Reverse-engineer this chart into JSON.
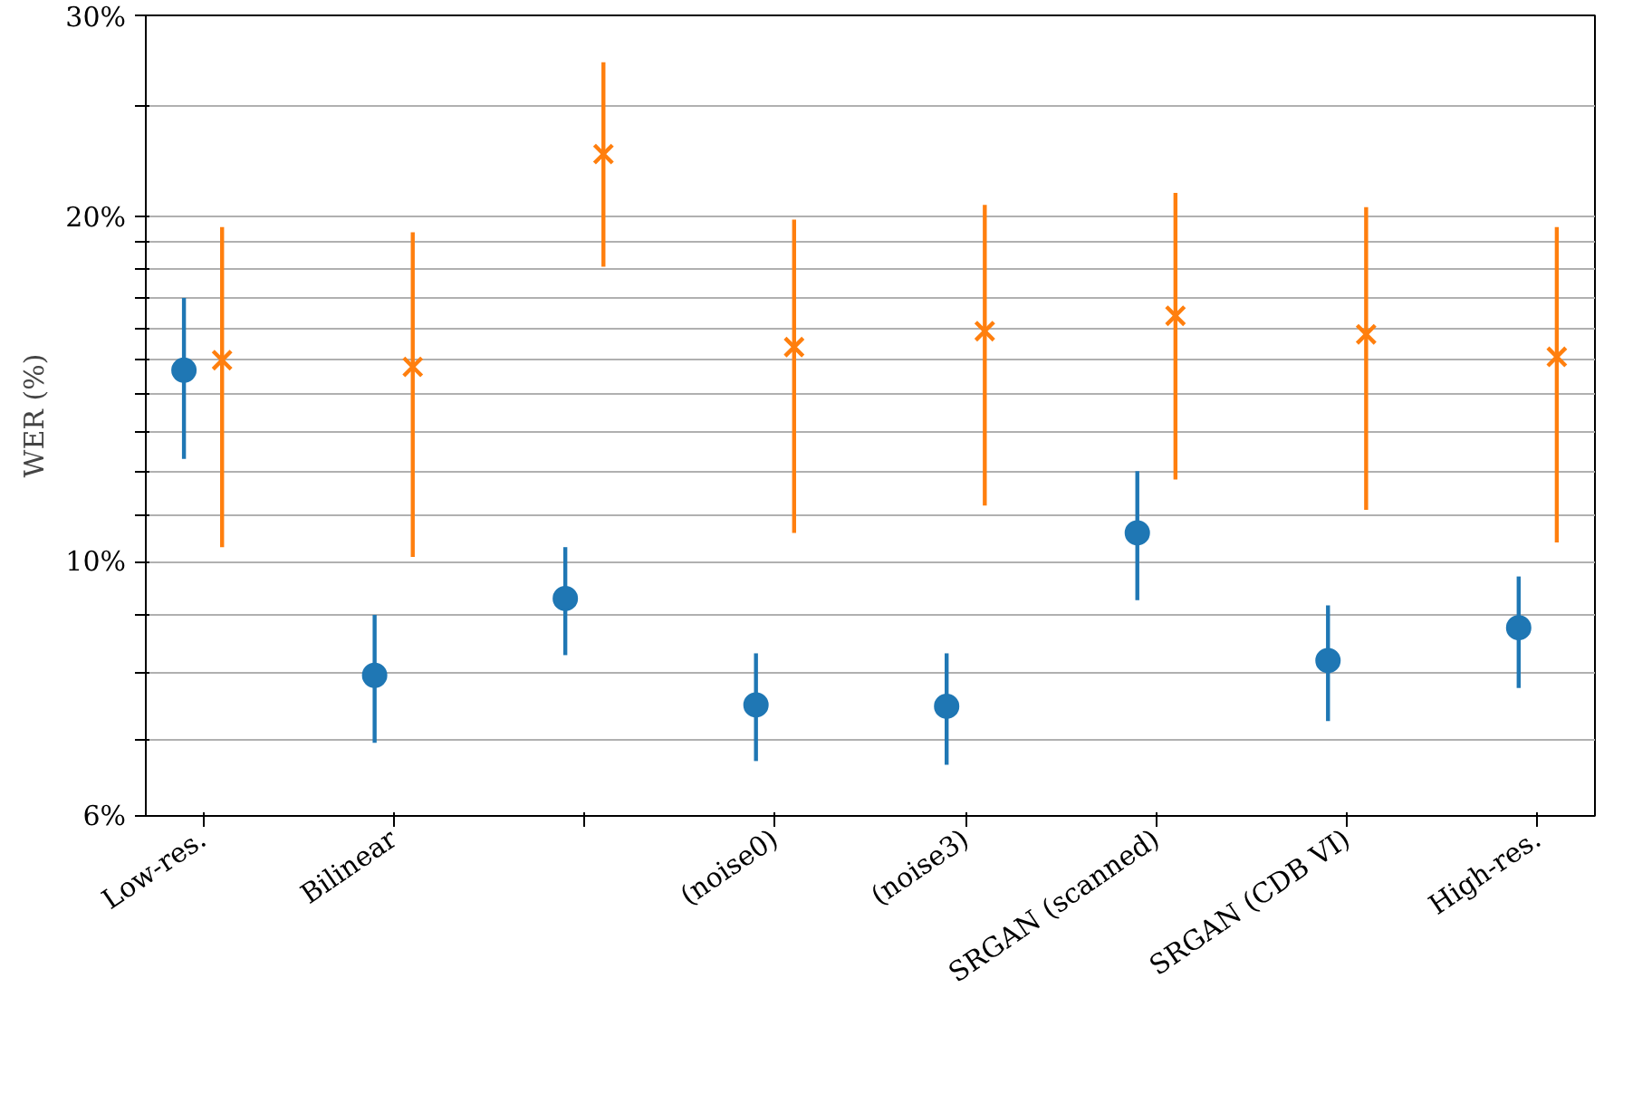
{
  "chart_data": {
    "type": "scatter",
    "ylabel": "WER (%)",
    "log": "y",
    "grid": "y",
    "categories": [
      "Low-res.",
      "Bilinear",
      null,
      "(noise0)",
      "(noise3)",
      "SRGAN (scanned)",
      "SRGAN (CDB VI)",
      "High-res."
    ],
    "ylim": [
      6,
      30
    ],
    "yticks": [
      {
        "value": 6,
        "label": "6%"
      },
      {
        "value": 7,
        "label": null
      },
      {
        "value": 8,
        "label": null
      },
      {
        "value": 9,
        "label": null
      },
      {
        "value": 10,
        "label": "10%"
      },
      {
        "value": 11,
        "label": null
      },
      {
        "value": 12,
        "label": null
      },
      {
        "value": 13,
        "label": null
      },
      {
        "value": 14,
        "label": null
      },
      {
        "value": 15,
        "label": null
      },
      {
        "value": 16,
        "label": null
      },
      {
        "value": 17,
        "label": null
      },
      {
        "value": 18,
        "label": null
      },
      {
        "value": 19,
        "label": null
      },
      {
        "value": 20,
        "label": "20%"
      },
      {
        "value": 25,
        "label": null
      },
      {
        "value": 30,
        "label": "30%"
      }
    ],
    "series": [
      {
        "color": "#1f77b4",
        "marker": "circle",
        "values": [
          14.7,
          7.96,
          9.29,
          7.5,
          7.48,
          10.6,
          8.2,
          8.76
        ],
        "errors": [
          [
            12.3,
            17.0
          ],
          [
            6.95,
            8.99
          ],
          [
            8.29,
            10.3
          ],
          [
            6.7,
            8.32
          ],
          [
            6.65,
            8.32
          ],
          [
            9.26,
            12.0
          ],
          [
            7.26,
            9.16
          ],
          [
            7.76,
            9.71
          ]
        ]
      },
      {
        "color": "#ff7f0e",
        "marker": "cross",
        "values": [
          15.0,
          14.8,
          22.7,
          15.4,
          15.9,
          16.4,
          15.8,
          15.1
        ],
        "errors": [
          [
            10.3,
            19.6
          ],
          [
            10.1,
            19.4
          ],
          [
            18.1,
            27.3
          ],
          [
            10.6,
            19.9
          ],
          [
            11.2,
            20.5
          ],
          [
            11.8,
            21.0
          ],
          [
            11.1,
            20.4
          ],
          [
            10.4,
            19.6
          ]
        ]
      }
    ]
  }
}
